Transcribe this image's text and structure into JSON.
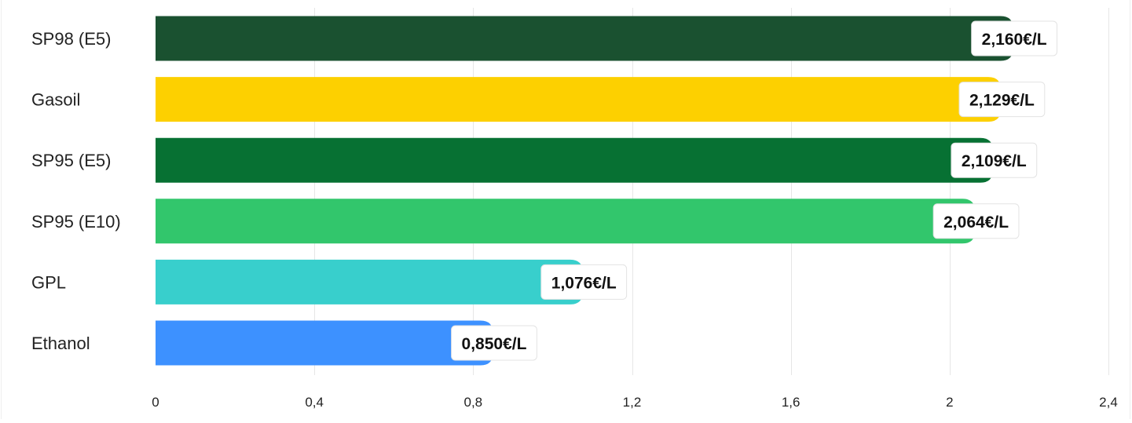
{
  "chart_data": {
    "type": "bar",
    "orientation": "horizontal",
    "categories": [
      "SP98 (E5)",
      "Gasoil",
      "SP95 (E5)",
      "SP95 (E10)",
      "GPL",
      "Ethanol"
    ],
    "values": [
      2.16,
      2.129,
      2.109,
      2.064,
      1.076,
      0.85
    ],
    "value_labels": [
      "2,160€/L",
      "2,129€/L",
      "2,109€/L",
      "2,064€/L",
      "1,076€/L",
      "0,850€/L"
    ],
    "colors": [
      "#1a5130",
      "#fdd000",
      "#077133",
      "#32c66c",
      "#38cfcc",
      "#3d91ff"
    ],
    "xlim": [
      0,
      2.4
    ],
    "x_ticks": [
      0,
      0.4,
      0.8,
      1.2,
      1.6,
      2,
      2.4
    ],
    "x_tick_labels": [
      "0",
      "0,4",
      "0,8",
      "1,2",
      "1,6",
      "2",
      "2,4"
    ],
    "grid": true,
    "title": "",
    "xlabel": "",
    "ylabel": ""
  }
}
